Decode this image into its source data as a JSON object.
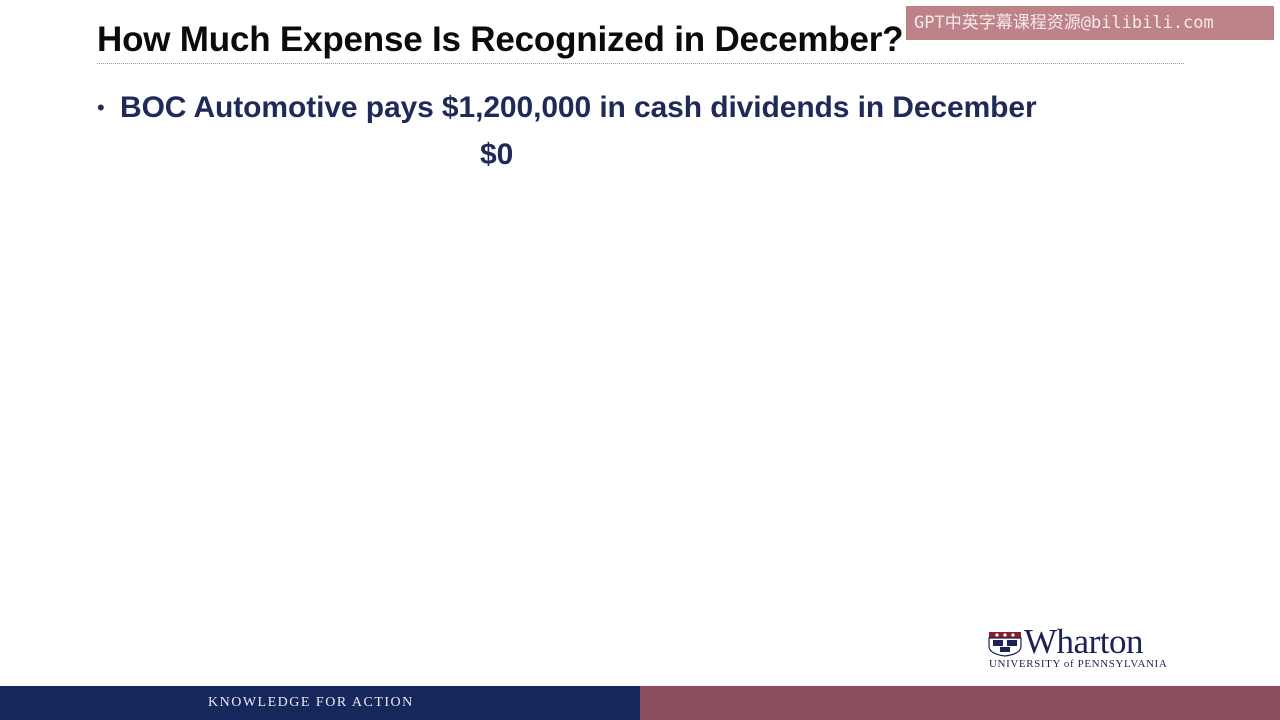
{
  "slide": {
    "title": "How Much Expense Is Recognized in December?",
    "bullets": [
      {
        "marker": "•",
        "text": "BOC Automotive pays $1,200,000 in cash dividends in December"
      }
    ],
    "answer": "$0"
  },
  "watermark": {
    "text": "GPT中英字幕课程资源@bilibili.com"
  },
  "logo": {
    "word": "Wharton",
    "sub": "UNIVERSITY of PENNSYLVANIA"
  },
  "footer": {
    "tagline": "KNOWLEDGE FOR ACTION",
    "left_color": "#16275b",
    "right_color": "#8c4d5f"
  },
  "colors": {
    "title": "#0b0b0b",
    "body": "#1f2a58",
    "brand_navy": "#1b2356"
  }
}
